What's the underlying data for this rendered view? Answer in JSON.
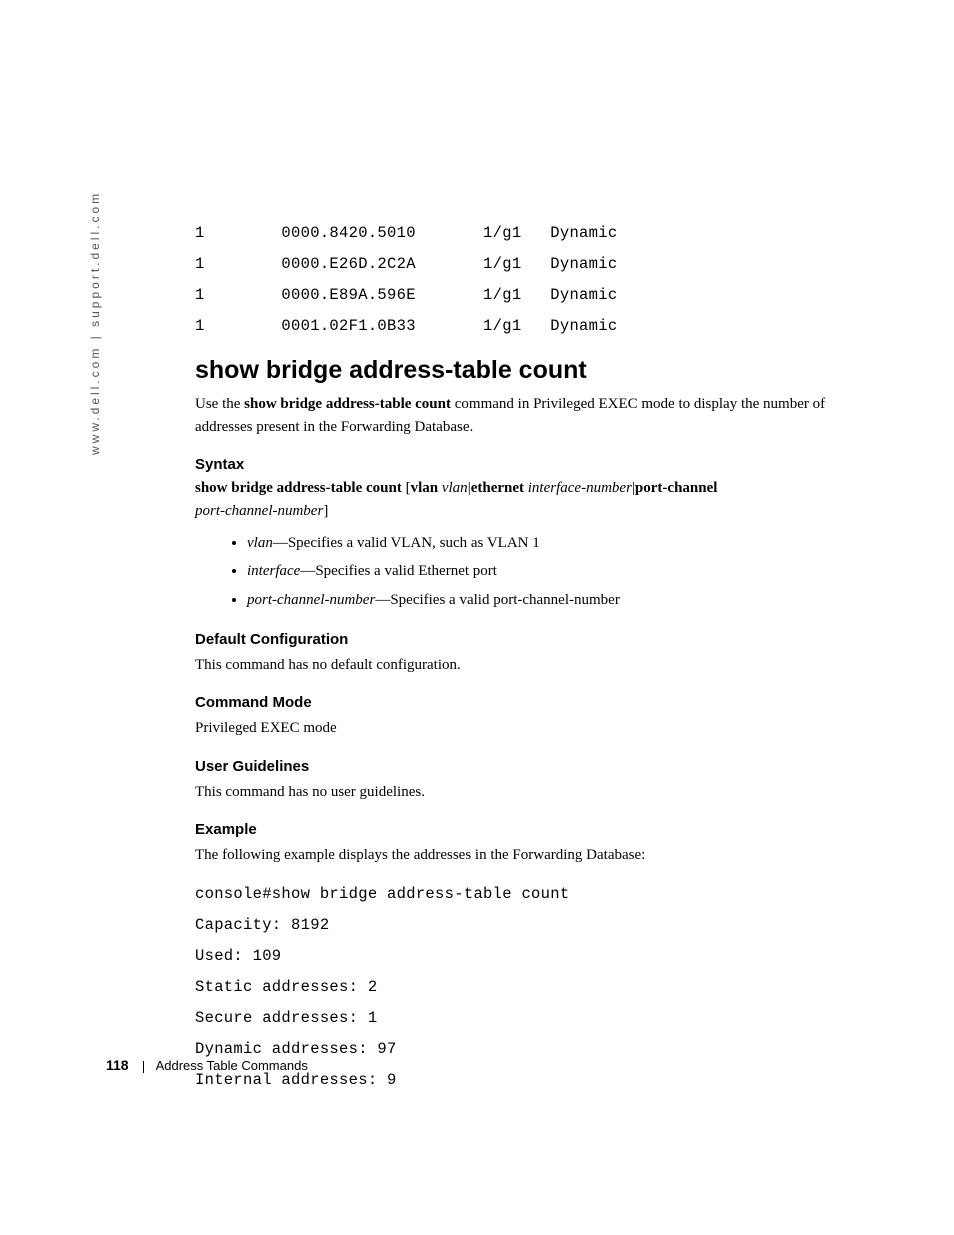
{
  "sidebar": {
    "url_text": "www.dell.com | support.dell.com"
  },
  "table_rows": [
    {
      "vlan": "1",
      "mac": "0000.8420.5010",
      "port": "1/g1",
      "type": "Dynamic"
    },
    {
      "vlan": "1",
      "mac": "0000.E26D.2C2A",
      "port": "1/g1",
      "type": "Dynamic"
    },
    {
      "vlan": "1",
      "mac": "0000.E89A.596E",
      "port": "1/g1",
      "type": "Dynamic"
    },
    {
      "vlan": "1",
      "mac": "0001.02F1.0B33",
      "port": "1/g1",
      "type": "Dynamic"
    }
  ],
  "section": {
    "title": "show bridge address-table count",
    "intro_pre": "Use the ",
    "intro_bold": "show bridge address-table count",
    "intro_post": " command in Privileged EXEC mode to display the number of addresses present in the Forwarding Database."
  },
  "syntax": {
    "heading": "Syntax",
    "cmd": "show bridge address-table count",
    "bracket_open": " [",
    "kw_vlan": "vlan",
    "arg_vlan": "vlan",
    "sep1": "|",
    "kw_eth": "ethernet",
    "arg_iface": "interface-number",
    "sep2": "|",
    "kw_pc": "port-channel",
    "arg_pc": "port-channel-number",
    "bracket_close": "]",
    "params": [
      {
        "name": "vlan",
        "desc": "—Specifies a valid VLAN, such as VLAN 1"
      },
      {
        "name": "interface",
        "desc": "—Specifies a valid Ethernet port"
      },
      {
        "name": "port-channel-number",
        "desc": "—Specifies a valid port-channel-number"
      }
    ]
  },
  "default_config": {
    "heading": "Default Configuration",
    "text": "This command has no default configuration."
  },
  "command_mode": {
    "heading": "Command Mode",
    "text": "Privileged EXEC mode"
  },
  "user_guidelines": {
    "heading": "User Guidelines",
    "text": "This command has no user guidelines."
  },
  "example": {
    "heading": "Example",
    "intro": "The following example displays the addresses in the Forwarding Database:",
    "lines": [
      "console#show bridge address-table count",
      "Capacity: 8192",
      "Used: 109",
      "Static addresses: 2",
      "Secure addresses: 1",
      "Dynamic addresses: 97",
      "Internal addresses: 9"
    ]
  },
  "footer": {
    "page": "118",
    "chapter": "Address Table Commands"
  }
}
